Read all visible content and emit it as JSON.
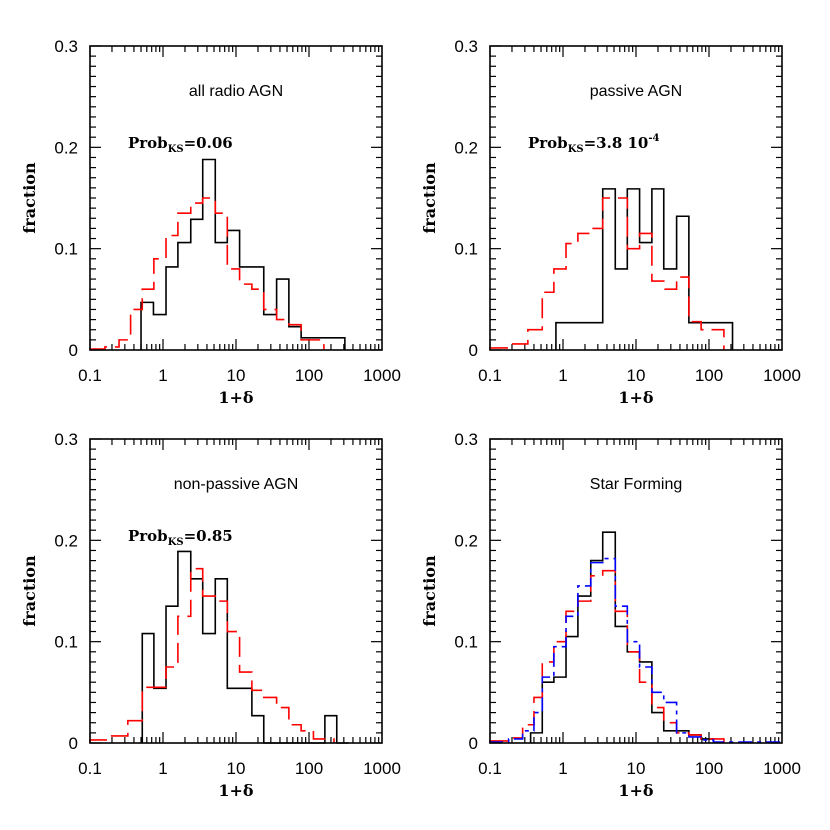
{
  "figure": {
    "xlabel": "1+δ",
    "ylabel": "fraction"
  },
  "chart_data": [
    {
      "type": "histogram",
      "title": "all radio  AGN",
      "annotation": {
        "main": "Prob",
        "sub": "KS",
        "value": "=0.06"
      },
      "xscale": "log",
      "xlim": [
        0.1,
        1000
      ],
      "ylim": [
        0,
        0.3
      ],
      "xticks": [
        "0.1",
        "1",
        "10",
        "100",
        "1000"
      ],
      "yticks": [
        "0",
        "0.1",
        "0.2",
        "0.3"
      ],
      "xlabel": "1+δ",
      "ylabel": "fraction",
      "series": [
        {
          "name": "black",
          "color": "#000000",
          "dash": "solid",
          "edges": [
            0.5,
            0.74,
            1.1,
            1.6,
            2.4,
            3.5,
            5.2,
            7.6,
            11.2,
            16.5,
            24,
            36,
            53,
            78,
            115,
            310
          ],
          "values": [
            0.047,
            0.035,
            0.082,
            0.106,
            0.129,
            0.188,
            0.106,
            0.118,
            0.082,
            0.082,
            0.035,
            0.07,
            0.023,
            0.012,
            0.012
          ]
        },
        {
          "name": "red",
          "color": "#ff0000",
          "dash": "dashed",
          "edges": [
            0.1,
            0.16,
            0.25,
            0.36,
            0.52,
            0.75,
            1.1,
            1.6,
            2.4,
            3.5,
            5.2,
            7.6,
            11.2,
            16.5,
            24,
            36,
            53,
            78,
            160
          ],
          "values": [
            0.001,
            0.003,
            0.01,
            0.04,
            0.06,
            0.09,
            0.113,
            0.135,
            0.145,
            0.15,
            0.135,
            0.08,
            0.065,
            0.06,
            0.04,
            0.03,
            0.025,
            0.01
          ]
        }
      ]
    },
    {
      "type": "histogram",
      "title": "passive AGN",
      "annotation": {
        "main": "Prob",
        "sub": "KS",
        "value": "=3.8  10",
        "sup": "-4"
      },
      "xscale": "log",
      "xlim": [
        0.1,
        1000
      ],
      "ylim": [
        0,
        0.3
      ],
      "xticks": [
        "0.1",
        "1",
        "10",
        "100",
        "1000"
      ],
      "yticks": [
        "0",
        "0.1",
        "0.2",
        "0.3"
      ],
      "xlabel": "1+δ",
      "ylabel": "fraction",
      "series": [
        {
          "name": "black",
          "color": "#000000",
          "dash": "solid",
          "edges": [
            0.8,
            3.5,
            5.2,
            7.6,
            11.2,
            16.5,
            24,
            36,
            53,
            78,
            210
          ],
          "values": [
            0.027,
            0.159,
            0.08,
            0.159,
            0.106,
            0.159,
            0.08,
            0.132,
            0.027,
            0.027
          ]
        },
        {
          "name": "red",
          "color": "#ff0000",
          "dash": "dashed",
          "edges": [
            0.1,
            0.18,
            0.33,
            0.52,
            0.75,
            1.1,
            1.6,
            2.4,
            3.5,
            5.2,
            7.6,
            11.2,
            16.5,
            24,
            36,
            53,
            78,
            160
          ],
          "values": [
            0.002,
            0.006,
            0.02,
            0.057,
            0.08,
            0.105,
            0.115,
            0.12,
            0.15,
            0.15,
            0.1,
            0.115,
            0.068,
            0.06,
            0.072,
            0.028,
            0.02
          ]
        }
      ]
    },
    {
      "type": "histogram",
      "title": "non-passive AGN",
      "annotation": {
        "main": "Prob",
        "sub": "KS",
        "value": "=0.85"
      },
      "xscale": "log",
      "xlim": [
        0.1,
        1000
      ],
      "ylim": [
        0,
        0.3
      ],
      "xticks": [
        "0.1",
        "1",
        "10",
        "100",
        "1000"
      ],
      "yticks": [
        "0",
        "0.1",
        "0.2",
        "0.3"
      ],
      "xlabel": "1+δ",
      "ylabel": "fraction",
      "series": [
        {
          "name": "black",
          "color": "#000000",
          "dash": "solid",
          "edges": [
            0.52,
            0.75,
            1.1,
            1.6,
            2.4,
            3.5,
            5.2,
            7.6,
            11.2,
            16.5,
            24,
            36,
            165,
            240,
            350
          ],
          "values": [
            0.108,
            0.054,
            0.135,
            0.189,
            0.162,
            0.108,
            0.162,
            0.054,
            0.054,
            0.027,
            0.0,
            0.0,
            0.027,
            0.0
          ]
        },
        {
          "name": "red",
          "color": "#ff0000",
          "dash": "dashed",
          "edges": [
            0.1,
            0.18,
            0.33,
            0.52,
            0.75,
            1.1,
            1.6,
            2.4,
            3.5,
            5.2,
            7.6,
            11.2,
            16.5,
            24,
            36,
            53,
            78,
            115,
            220
          ],
          "values": [
            0.003,
            0.007,
            0.022,
            0.055,
            0.055,
            0.075,
            0.125,
            0.172,
            0.145,
            0.14,
            0.11,
            0.07,
            0.052,
            0.045,
            0.035,
            0.018,
            0.012,
            0.004
          ]
        }
      ]
    },
    {
      "type": "histogram",
      "title": "Star Forming",
      "xscale": "log",
      "xlim": [
        0.1,
        1000
      ],
      "ylim": [
        0,
        0.3
      ],
      "xticks": [
        "0.1",
        "1",
        "10",
        "100",
        "1000"
      ],
      "yticks": [
        "0",
        "0.1",
        "0.2",
        "0.3"
      ],
      "xlabel": "1+δ",
      "ylabel": "fraction",
      "series": [
        {
          "name": "black",
          "color": "#000000",
          "dash": "solid",
          "edges": [
            0.36,
            0.52,
            0.75,
            1.1,
            1.6,
            2.4,
            3.5,
            5.2,
            7.6,
            11.2,
            16.5,
            24,
            36,
            53,
            78,
            115
          ],
          "values": [
            0.01,
            0.06,
            0.065,
            0.105,
            0.145,
            0.18,
            0.208,
            0.115,
            0.09,
            0.08,
            0.03,
            0.012,
            0.012,
            0.008,
            0.004
          ]
        },
        {
          "name": "red",
          "color": "#ff0000",
          "dash": "dashed",
          "edges": [
            0.1,
            0.18,
            0.28,
            0.4,
            0.52,
            0.75,
            1.1,
            1.6,
            2.4,
            3.5,
            5.2,
            7.6,
            11.2,
            16.5,
            24,
            36,
            53,
            78,
            160
          ],
          "values": [
            0.002,
            0.005,
            0.018,
            0.045,
            0.08,
            0.1,
            0.13,
            0.14,
            0.165,
            0.17,
            0.13,
            0.09,
            0.06,
            0.035,
            0.02,
            0.01,
            0.008,
            0.004
          ]
        },
        {
          "name": "blue",
          "color": "#0000ff",
          "dash": "dash-dot",
          "edges": [
            0.1,
            0.18,
            0.28,
            0.4,
            0.52,
            0.75,
            1.1,
            1.6,
            2.4,
            3.5,
            5.2,
            7.6,
            11.2,
            16.5,
            24,
            36,
            53,
            78,
            115,
            1000
          ],
          "values": [
            0.001,
            0.004,
            0.012,
            0.03,
            0.065,
            0.095,
            0.125,
            0.155,
            0.178,
            0.182,
            0.135,
            0.1,
            0.075,
            0.05,
            0.04,
            0.01,
            0.006,
            0.003,
            0.001
          ]
        }
      ]
    }
  ]
}
